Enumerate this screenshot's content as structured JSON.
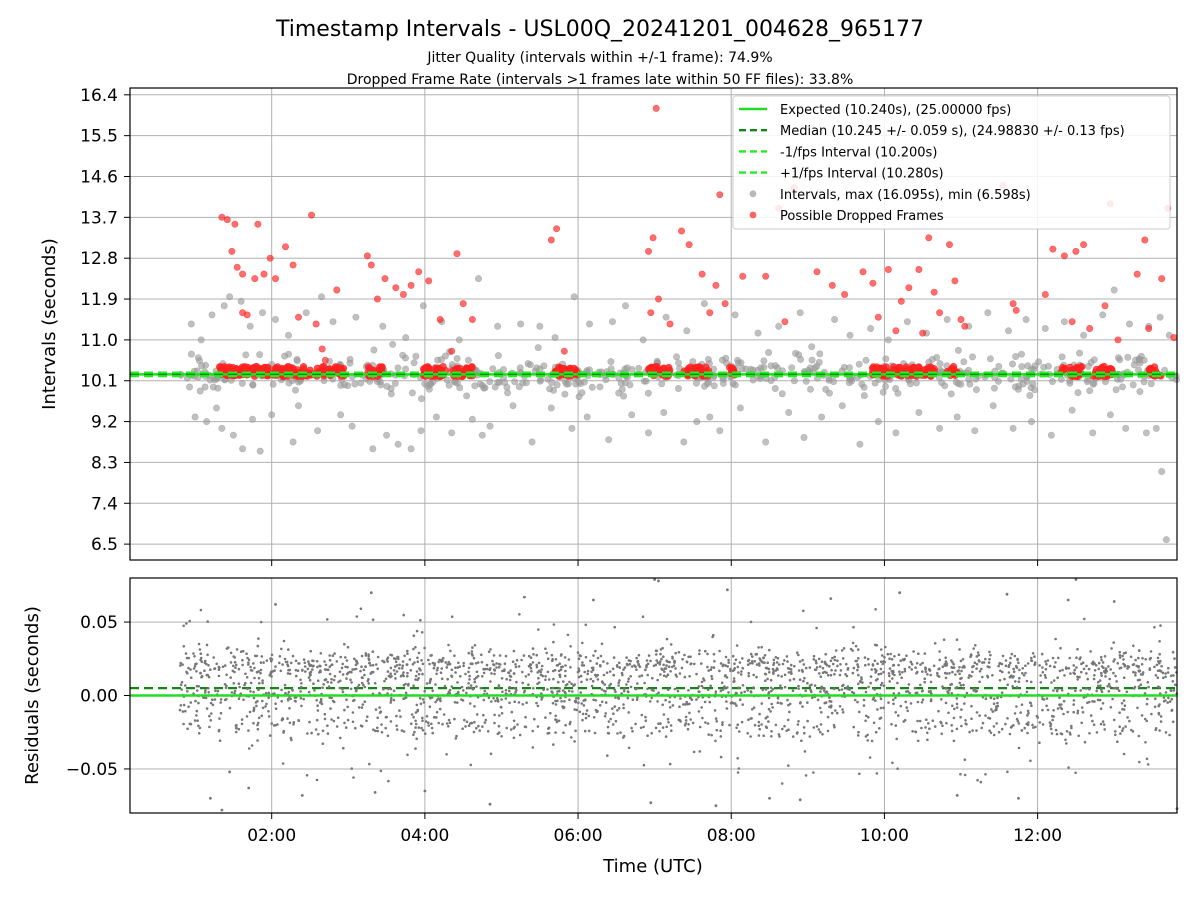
{
  "chart_data": {
    "title": "Timestamp Intervals - USL00Q_20241201_004628_965177",
    "subtitle_lines": [
      "Jitter Quality (intervals within +/-1 frame): 74.9%",
      "Dropped Frame Rate (intervals >1 frames late within 50 FF files): 33.8%"
    ],
    "colors": {
      "expected": "#22dd22",
      "median": "#118811",
      "fps_bounds": "#22ee22",
      "intervals": "#999999",
      "dropped": "#ff2020",
      "residuals": "#777777",
      "grid": "#b0b0b0"
    },
    "xaxis": {
      "label": "Time (UTC)",
      "range_hours": [
        0.15,
        13.82
      ],
      "tick_hours": [
        2,
        4,
        6,
        8,
        10,
        12
      ],
      "tick_labels": [
        "02:00",
        "04:00",
        "06:00",
        "08:00",
        "10:00",
        "12:00"
      ]
    },
    "top_panel": {
      "type": "scatter",
      "ylabel": "Intervals (seconds)",
      "ylim": [
        6.15,
        16.55
      ],
      "yticks": [
        6.5,
        7.4,
        8.3,
        9.2,
        10.1,
        11.0,
        11.9,
        12.8,
        13.7,
        14.6,
        15.5,
        16.4
      ],
      "ytick_labels": [
        "6.5",
        "7.4",
        "8.3",
        "9.2",
        "10.1",
        "11.0",
        "11.9",
        "12.8",
        "13.7",
        "14.6",
        "15.5",
        "16.4"
      ],
      "expected": 10.24,
      "median": 10.245,
      "minus_interval": 10.2,
      "plus_interval": 10.28,
      "max_interval": 16.095,
      "min_interval": 6.598,
      "legend": {
        "placement": "top-right",
        "entries": [
          {
            "label": "Expected (10.240s), (25.00000 fps)",
            "kind": "line",
            "style": "solid",
            "color_key": "expected"
          },
          {
            "label": "Median (10.245 +/- 0.059 s), (24.98830 +/- 0.13 fps)",
            "kind": "line",
            "style": "dashed",
            "color_key": "median"
          },
          {
            "label": "-1/fps Interval (10.200s)",
            "kind": "line",
            "style": "dashed",
            "color_key": "fps_bounds"
          },
          {
            "label": "+1/fps Interval (10.280s)",
            "kind": "line",
            "style": "dashed",
            "color_key": "fps_bounds"
          },
          {
            "label": "Intervals, max (16.095s), min (6.598s)",
            "kind": "marker",
            "color_key": "intervals"
          },
          {
            "label": "Possible Dropped Frames",
            "kind": "marker",
            "color_key": "dropped"
          }
        ]
      },
      "intervals_outliers": [
        [
          0.95,
          11.35
        ],
        [
          1.08,
          11.0
        ],
        [
          1.22,
          11.55
        ],
        [
          1.38,
          11.75
        ],
        [
          1.45,
          11.95
        ],
        [
          1.6,
          11.85
        ],
        [
          1.72,
          11.3
        ],
        [
          1.88,
          11.6
        ],
        [
          2.05,
          11.45
        ],
        [
          2.22,
          11.1
        ],
        [
          2.45,
          11.6
        ],
        [
          2.65,
          11.95
        ],
        [
          2.8,
          11.4
        ],
        [
          3.1,
          11.5
        ],
        [
          3.45,
          11.3
        ],
        [
          3.58,
          10.9
        ],
        [
          3.75,
          11.05
        ],
        [
          3.98,
          11.75
        ],
        [
          4.22,
          11.4
        ],
        [
          4.45,
          11.0
        ],
        [
          4.7,
          12.35
        ],
        [
          4.95,
          11.3
        ],
        [
          5.25,
          11.35
        ],
        [
          5.5,
          11.3
        ],
        [
          5.7,
          11.05
        ],
        [
          5.95,
          11.95
        ],
        [
          6.15,
          11.35
        ],
        [
          6.45,
          11.4
        ],
        [
          6.62,
          11.75
        ],
        [
          6.85,
          11.0
        ],
        [
          7.15,
          11.5
        ],
        [
          7.42,
          11.2
        ],
        [
          7.65,
          11.8
        ],
        [
          8.05,
          11.55
        ],
        [
          8.35,
          11.15
        ],
        [
          8.62,
          11.3
        ],
        [
          8.9,
          11.6
        ],
        [
          9.05,
          10.85
        ],
        [
          9.35,
          11.45
        ],
        [
          9.55,
          11.1
        ],
        [
          9.82,
          11.25
        ],
        [
          10.05,
          11.0
        ],
        [
          10.3,
          11.4
        ],
        [
          10.55,
          11.15
        ],
        [
          10.82,
          11.45
        ],
        [
          11.1,
          11.3
        ],
        [
          11.35,
          11.6
        ],
        [
          11.62,
          11.2
        ],
        [
          11.85,
          11.45
        ],
        [
          12.1,
          11.25
        ],
        [
          12.35,
          11.4
        ],
        [
          12.6,
          11.1
        ],
        [
          12.85,
          11.55
        ],
        [
          13.0,
          12.1
        ],
        [
          13.2,
          11.35
        ],
        [
          13.45,
          11.3
        ],
        [
          13.6,
          11.5
        ],
        [
          13.72,
          11.1
        ],
        [
          1.0,
          9.3
        ],
        [
          1.15,
          9.2
        ],
        [
          1.28,
          9.5
        ],
        [
          1.35,
          9.05
        ],
        [
          1.5,
          8.9
        ],
        [
          1.62,
          8.6
        ],
        [
          1.75,
          9.25
        ],
        [
          1.85,
          8.55
        ],
        [
          2.0,
          9.35
        ],
        [
          2.28,
          8.75
        ],
        [
          2.35,
          9.55
        ],
        [
          2.6,
          9.0
        ],
        [
          2.9,
          9.35
        ],
        [
          3.05,
          9.1
        ],
        [
          3.32,
          8.6
        ],
        [
          3.5,
          8.9
        ],
        [
          3.65,
          8.7
        ],
        [
          3.82,
          8.6
        ],
        [
          3.95,
          9.0
        ],
        [
          4.15,
          9.3
        ],
        [
          4.35,
          8.95
        ],
        [
          4.62,
          9.25
        ],
        [
          4.75,
          8.9
        ],
        [
          4.85,
          9.1
        ],
        [
          5.15,
          9.55
        ],
        [
          5.4,
          8.75
        ],
        [
          5.65,
          9.5
        ],
        [
          5.92,
          9.05
        ],
        [
          6.12,
          9.3
        ],
        [
          6.4,
          8.8
        ],
        [
          6.7,
          9.35
        ],
        [
          6.92,
          8.95
        ],
        [
          7.12,
          9.4
        ],
        [
          7.38,
          8.75
        ],
        [
          7.55,
          9.2
        ],
        [
          7.72,
          9.3
        ],
        [
          7.85,
          9.0
        ],
        [
          8.12,
          9.5
        ],
        [
          8.45,
          8.75
        ],
        [
          8.75,
          9.4
        ],
        [
          8.95,
          8.85
        ],
        [
          9.18,
          9.3
        ],
        [
          9.45,
          9.55
        ],
        [
          9.68,
          8.7
        ],
        [
          9.92,
          9.2
        ],
        [
          10.15,
          8.95
        ],
        [
          10.45,
          9.4
        ],
        [
          10.72,
          9.05
        ],
        [
          10.95,
          9.3
        ],
        [
          11.18,
          9.0
        ],
        [
          11.42,
          9.55
        ],
        [
          11.68,
          9.05
        ],
        [
          11.92,
          9.2
        ],
        [
          12.18,
          8.9
        ],
        [
          12.45,
          9.45
        ],
        [
          12.72,
          8.95
        ],
        [
          12.95,
          9.35
        ],
        [
          13.15,
          9.05
        ],
        [
          13.42,
          8.95
        ],
        [
          13.55,
          9.05
        ],
        [
          13.62,
          8.1
        ],
        [
          13.68,
          6.6
        ]
      ],
      "intervals_band": {
        "center": 10.24,
        "spread": 0.22,
        "count": 560
      },
      "dropped_frames_outliers": [
        [
          1.35,
          13.7
        ],
        [
          1.42,
          13.65
        ],
        [
          1.52,
          13.55
        ],
        [
          1.62,
          12.45
        ],
        [
          1.78,
          12.35
        ],
        [
          1.48,
          12.95
        ],
        [
          1.55,
          12.6
        ],
        [
          1.62,
          11.6
        ],
        [
          1.68,
          11.55
        ],
        [
          1.82,
          13.55
        ],
        [
          1.9,
          12.45
        ],
        [
          1.98,
          12.8
        ],
        [
          2.05,
          12.35
        ],
        [
          2.18,
          13.05
        ],
        [
          2.28,
          12.65
        ],
        [
          2.35,
          11.5
        ],
        [
          2.52,
          13.75
        ],
        [
          2.58,
          11.35
        ],
        [
          2.66,
          10.8
        ],
        [
          2.7,
          10.55
        ],
        [
          2.85,
          12.1
        ],
        [
          3.25,
          12.85
        ],
        [
          3.3,
          12.65
        ],
        [
          3.38,
          11.9
        ],
        [
          3.48,
          12.35
        ],
        [
          3.62,
          12.15
        ],
        [
          3.72,
          12.0
        ],
        [
          3.82,
          12.2
        ],
        [
          3.92,
          12.5
        ],
        [
          4.05,
          12.3
        ],
        [
          4.2,
          11.45
        ],
        [
          4.35,
          10.75
        ],
        [
          4.42,
          12.9
        ],
        [
          4.5,
          11.8
        ],
        [
          4.62,
          11.45
        ],
        [
          5.65,
          13.2
        ],
        [
          5.72,
          13.45
        ],
        [
          5.82,
          10.75
        ],
        [
          6.92,
          12.95
        ],
        [
          6.98,
          13.25
        ],
        [
          7.02,
          16.1
        ],
        [
          7.05,
          11.9
        ],
        [
          6.95,
          11.6
        ],
        [
          7.2,
          11.35
        ],
        [
          7.35,
          13.4
        ],
        [
          7.45,
          13.1
        ],
        [
          7.62,
          12.45
        ],
        [
          7.72,
          11.6
        ],
        [
          7.8,
          12.2
        ],
        [
          7.85,
          14.2
        ],
        [
          7.92,
          11.8
        ],
        [
          8.15,
          12.4
        ],
        [
          8.45,
          12.4
        ],
        [
          8.62,
          13.9
        ],
        [
          8.7,
          11.4
        ],
        [
          8.82,
          14.35
        ],
        [
          9.12,
          12.5
        ],
        [
          9.32,
          12.2
        ],
        [
          9.48,
          12.0
        ],
        [
          9.72,
          12.5
        ],
        [
          9.85,
          12.25
        ],
        [
          9.92,
          11.5
        ],
        [
          10.05,
          12.55
        ],
        [
          10.15,
          11.2
        ],
        [
          10.22,
          11.85
        ],
        [
          10.32,
          12.15
        ],
        [
          10.45,
          12.55
        ],
        [
          10.5,
          11.15
        ],
        [
          10.58,
          13.25
        ],
        [
          10.65,
          12.05
        ],
        [
          10.72,
          11.6
        ],
        [
          10.85,
          13.1
        ],
        [
          10.92,
          12.3
        ],
        [
          11.0,
          11.45
        ],
        [
          11.05,
          11.3
        ],
        [
          11.55,
          14.4
        ],
        [
          11.68,
          11.8
        ],
        [
          11.72,
          11.65
        ],
        [
          12.1,
          12.0
        ],
        [
          12.2,
          13.0
        ],
        [
          12.35,
          12.85
        ],
        [
          12.45,
          11.4
        ],
        [
          12.5,
          12.95
        ],
        [
          12.6,
          13.1
        ],
        [
          12.68,
          11.25
        ],
        [
          12.88,
          11.75
        ],
        [
          12.95,
          14.0
        ],
        [
          13.05,
          11.0
        ],
        [
          13.3,
          12.45
        ],
        [
          13.4,
          13.2
        ],
        [
          13.45,
          11.25
        ],
        [
          13.62,
          12.35
        ],
        [
          13.7,
          13.9
        ],
        [
          13.78,
          11.05
        ]
      ],
      "dropped_frames_band": {
        "level": 10.27,
        "spread": 0.1,
        "segments": [
          [
            1.28,
            2.05
          ],
          [
            2.05,
            2.7
          ],
          [
            2.75,
            2.95
          ],
          [
            3.25,
            3.45
          ],
          [
            3.98,
            4.28
          ],
          [
            4.35,
            4.62
          ],
          [
            5.68,
            6.0
          ],
          [
            6.92,
            7.2
          ],
          [
            7.38,
            7.72
          ],
          [
            7.98,
            8.05
          ],
          [
            9.82,
            10.05
          ],
          [
            10.1,
            10.65
          ],
          [
            10.82,
            10.95
          ],
          [
            12.3,
            12.58
          ],
          [
            12.72,
            12.98
          ],
          [
            13.45,
            13.62
          ]
        ]
      }
    },
    "bottom_panel": {
      "type": "scatter",
      "ylabel": "Residuals (seconds)",
      "ylim": [
        -0.08,
        0.08
      ],
      "yticks": [
        -0.05,
        0.0,
        0.05
      ],
      "ytick_labels": [
        "−0.05",
        "0.00",
        "0.05"
      ],
      "zero_line": 0.0,
      "median_offset": 0.005,
      "residual_cloud": {
        "x_start": 0.8,
        "x_end": 13.82,
        "count": 2600,
        "bands": [
          0.02,
          0.0,
          -0.02
        ]
      },
      "residual_outliers": [
        [
          1.2,
          -0.07
        ],
        [
          1.35,
          -0.078
        ],
        [
          1.45,
          -0.052
        ],
        [
          1.7,
          -0.063
        ],
        [
          2.05,
          0.062
        ],
        [
          2.4,
          -0.068
        ],
        [
          3.3,
          0.07
        ],
        [
          3.35,
          -0.066
        ],
        [
          4.0,
          -0.065
        ],
        [
          4.85,
          -0.074
        ],
        [
          5.3,
          0.067
        ],
        [
          6.2,
          0.065
        ],
        [
          6.95,
          -0.073
        ],
        [
          7.0,
          0.079
        ],
        [
          7.05,
          0.078
        ],
        [
          7.8,
          -0.075
        ],
        [
          7.95,
          0.072
        ],
        [
          8.5,
          -0.07
        ],
        [
          8.9,
          -0.071
        ],
        [
          9.3,
          0.066
        ],
        [
          10.2,
          0.07
        ],
        [
          10.95,
          -0.068
        ],
        [
          11.6,
          0.069
        ],
        [
          11.75,
          -0.07
        ],
        [
          12.4,
          0.065
        ],
        [
          12.5,
          0.079
        ],
        [
          13.0,
          0.064
        ],
        [
          13.82,
          -0.077
        ]
      ]
    }
  }
}
